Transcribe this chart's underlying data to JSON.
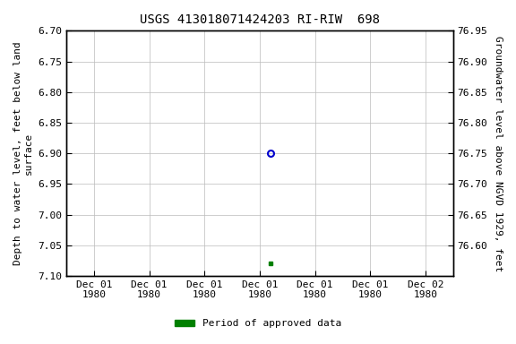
{
  "title": "USGS 413018071424203 RI-RIW  698",
  "ylabel_left": "Depth to water level, feet below land\nsurface",
  "ylabel_right": "Groundwater level above NGVD 1929, feet",
  "ylim_left_top": 6.7,
  "ylim_left_bottom": 7.1,
  "ylim_right_top": 76.95,
  "ylim_right_bottom": 76.55,
  "yticks_left": [
    6.7,
    6.75,
    6.8,
    6.85,
    6.9,
    6.95,
    7.0,
    7.05,
    7.1
  ],
  "yticks_right": [
    76.95,
    76.9,
    76.85,
    76.8,
    76.75,
    76.7,
    76.65,
    76.6
  ],
  "point_open_x": 3.2,
  "point_open_value": 6.9,
  "point_filled_x": 3.2,
  "point_filled_value": 7.08,
  "open_color": "#0000cc",
  "filled_color": "#008000",
  "legend_label": "Period of approved data",
  "legend_color": "#008000",
  "background_color": "#ffffff",
  "grid_color": "#bbbbbb",
  "font_family": "monospace",
  "title_fontsize": 10,
  "label_fontsize": 8,
  "tick_fontsize": 8,
  "x_ticks": [
    0,
    1,
    2,
    3,
    4,
    5,
    6
  ],
  "x_labels_top": [
    "Dec 01",
    "Dec 01",
    "Dec 01",
    "Dec 01",
    "Dec 01",
    "Dec 01",
    "Dec 02"
  ],
  "x_labels_bot": [
    "1980",
    "1980",
    "1980",
    "1980",
    "1980",
    "1980",
    "1980"
  ]
}
